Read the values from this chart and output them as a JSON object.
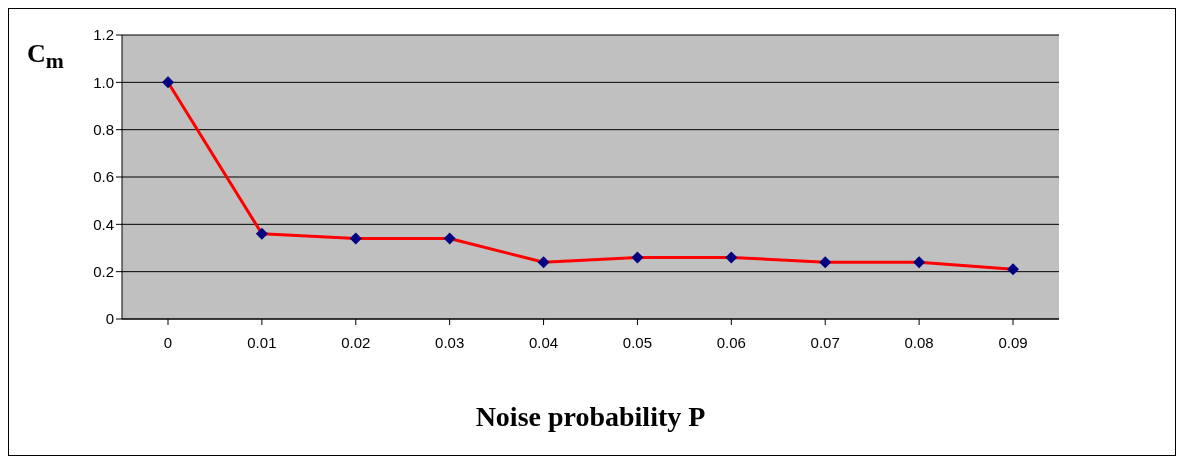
{
  "chart_data": {
    "type": "line",
    "ylabel": "C$_{m}$",
    "xlabel": "Noise probability P",
    "categories": [
      "0",
      "0.01",
      "0.02",
      "0.03",
      "0.04",
      "0.05",
      "0.06",
      "0.07",
      "0.08",
      "0.09"
    ],
    "series": [
      {
        "color": "#ff0000",
        "colors": [
          "#000080",
          "#000080",
          "#000080",
          "#000080",
          "#000080",
          "#000080",
          "#000080",
          "#000080",
          "#000080",
          "#000080"
        ],
        "values": [
          1.0,
          0.36,
          0.34,
          0.34,
          0.24,
          0.26,
          0.26,
          0.24,
          0.24,
          0.21
        ]
      }
    ],
    "ylim": [
      0,
      1.2
    ],
    "yticks": [
      0,
      {
        "value": 0.2,
        "label": "0.2"
      },
      {
        "value": 0.4,
        "label": "0.4"
      },
      {
        "value": 0.6,
        "label": "0.6"
      },
      {
        "value": 0.8,
        "label": "0.8"
      },
      {
        "value": 1,
        "label": "1.0"
      },
      {
        "value": 1.2,
        "label": "1.2"
      }
    ],
    "grid": "y",
    "legend": false,
    "marker": "diamond",
    "line_style": "solid"
  }
}
